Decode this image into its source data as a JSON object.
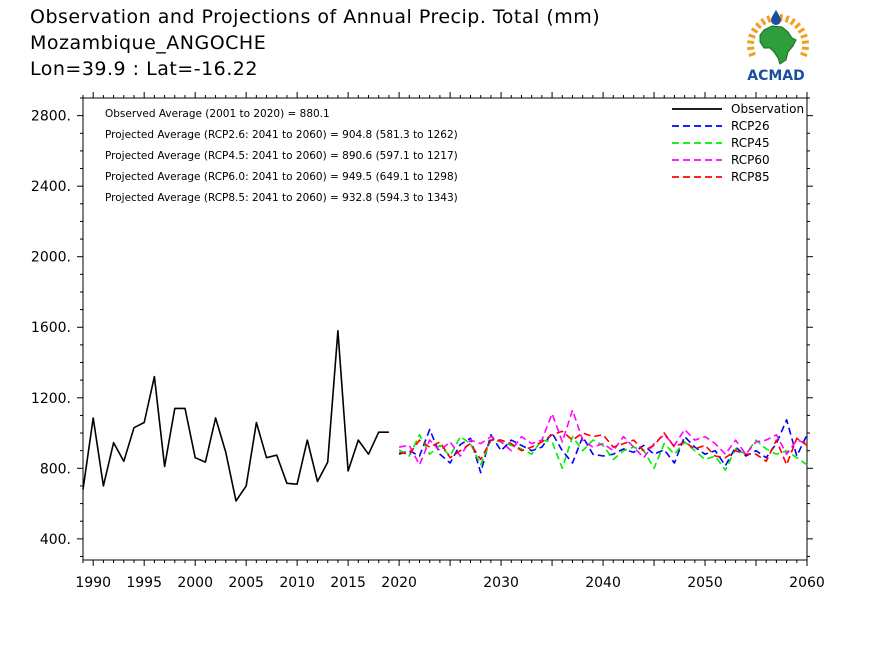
{
  "header": {
    "title_line1": "Observation and Projections of Annual Precip. Total (mm)",
    "title_line2": "Mozambique_ANGOCHE",
    "title_line3": "Lon=39.9 : Lat=-16.22"
  },
  "logo": {
    "text": "ACMAD",
    "icon": "africa-map-sun-logo"
  },
  "colors": {
    "observation": "#000000",
    "rcp26": "#0000ff",
    "rcp45": "#00ee00",
    "rcp60": "#ff00ff",
    "rcp85": "#ff0000",
    "logo_blue": "#1a4fa0",
    "logo_green": "#2e9e3a",
    "logo_orange": "#f0a020"
  },
  "chart_data": {
    "type": "line",
    "title": "Observation and Projections of Annual Precip. Total (mm)",
    "xlim": [
      1989,
      2060
    ],
    "ylim": [
      280,
      2900
    ],
    "y_ticks": [
      {
        "value": 400,
        "label": "400."
      },
      {
        "value": 800,
        "label": "800."
      },
      {
        "value": 1200,
        "label": "1200."
      },
      {
        "value": 1600,
        "label": "1600."
      },
      {
        "value": 2000,
        "label": "2000."
      },
      {
        "value": 2400,
        "label": "2400."
      },
      {
        "value": 2800,
        "label": "2800."
      }
    ],
    "x_ticks": [
      {
        "value": 1990,
        "label": "1990"
      },
      {
        "value": 1995,
        "label": "1995"
      },
      {
        "value": 2000,
        "label": "2000"
      },
      {
        "value": 2005,
        "label": "2005"
      },
      {
        "value": 2010,
        "label": "2010"
      },
      {
        "value": 2015,
        "label": "2015"
      },
      {
        "value": 2020,
        "label": "2020"
      },
      {
        "value": 2030,
        "label": "2030"
      },
      {
        "value": 2040,
        "label": "2040"
      },
      {
        "value": 2050,
        "label": "2050"
      },
      {
        "value": 2060,
        "label": "2060"
      }
    ],
    "legend_position": "top-right",
    "annotations": [
      "Observed Average (2001 to 2020) = 880.1",
      "Projected Average (RCP2.6: 2041 to 2060) = 904.8 (581.3 to 1262)",
      "Projected Average (RCP4.5: 2041 to 2060) = 890.6 (597.1 to 1217)",
      "Projected Average (RCP6.0: 2041 to 2060) = 949.5 (649.1 to 1298)",
      "Projected Average (RCP8.5: 2041 to 2060) = 932.8 (594.3 to 1343)"
    ],
    "series": [
      {
        "name": "Observation",
        "key": "observation",
        "x": [
          1989,
          1990,
          1991,
          1992,
          1993,
          1994,
          1995,
          1996,
          1997,
          1998,
          1999,
          2000,
          2001,
          2002,
          2003,
          2004,
          2005,
          2006,
          2007,
          2008,
          2009,
          2010,
          2011,
          2012,
          2013,
          2014,
          2015,
          2016,
          2017,
          2018,
          2019
        ],
        "values": [
          680,
          1085,
          700,
          945,
          840,
          1030,
          1060,
          1320,
          810,
          1140,
          1140,
          860,
          835,
          1085,
          890,
          615,
          700,
          1060,
          860,
          875,
          715,
          710,
          960,
          725,
          835,
          1580,
          785,
          960,
          880,
          1005,
          1005
        ]
      },
      {
        "name": "RCP26",
        "key": "rcp26",
        "x": [
          2020,
          2021,
          2022,
          2023,
          2024,
          2025,
          2026,
          2027,
          2028,
          2029,
          2030,
          2031,
          2032,
          2033,
          2034,
          2035,
          2036,
          2037,
          2038,
          2039,
          2040,
          2041,
          2042,
          2043,
          2044,
          2045,
          2046,
          2047,
          2048,
          2049,
          2050,
          2051,
          2052,
          2053,
          2054,
          2055,
          2056,
          2057,
          2058,
          2059,
          2060
        ],
        "values": [
          880,
          900,
          870,
          1020,
          880,
          830,
          935,
          970,
          775,
          990,
          900,
          960,
          930,
          900,
          920,
          1000,
          900,
          830,
          980,
          880,
          870,
          880,
          910,
          890,
          930,
          880,
          905,
          830,
          980,
          920,
          880,
          900,
          815,
          920,
          870,
          900,
          860,
          940,
          1075,
          870,
          990
        ]
      },
      {
        "name": "RCP45",
        "key": "rcp45",
        "x": [
          2020,
          2021,
          2022,
          2023,
          2024,
          2025,
          2026,
          2027,
          2028,
          2029,
          2030,
          2031,
          2032,
          2033,
          2034,
          2035,
          2036,
          2037,
          2038,
          2039,
          2040,
          2041,
          2042,
          2043,
          2044,
          2045,
          2046,
          2047,
          2048,
          2049,
          2050,
          2051,
          2052,
          2053,
          2054,
          2055,
          2056,
          2057,
          2058,
          2059,
          2060
        ],
        "values": [
          905,
          870,
          990,
          880,
          930,
          870,
          980,
          940,
          820,
          960,
          950,
          930,
          910,
          880,
          960,
          950,
          800,
          980,
          900,
          960,
          930,
          850,
          900,
          920,
          900,
          800,
          940,
          880,
          950,
          900,
          850,
          870,
          790,
          910,
          880,
          960,
          910,
          880,
          900,
          860,
          820
        ]
      },
      {
        "name": "RCP60",
        "key": "rcp60",
        "x": [
          2020,
          2021,
          2022,
          2023,
          2024,
          2025,
          2026,
          2027,
          2028,
          2029,
          2030,
          2031,
          2032,
          2033,
          2034,
          2035,
          2036,
          2037,
          2038,
          2039,
          2040,
          2041,
          2042,
          2043,
          2044,
          2045,
          2046,
          2047,
          2048,
          2049,
          2050,
          2051,
          2052,
          2053,
          2054,
          2055,
          2056,
          2057,
          2058,
          2059,
          2060
        ],
        "values": [
          920,
          930,
          820,
          960,
          900,
          950,
          870,
          960,
          940,
          980,
          950,
          900,
          980,
          940,
          960,
          1110,
          950,
          1130,
          960,
          920,
          940,
          900,
          980,
          920,
          860,
          940,
          990,
          930,
          1020,
          960,
          980,
          940,
          880,
          960,
          880,
          950,
          960,
          990,
          880,
          960,
          940
        ]
      },
      {
        "name": "RCP85",
        "key": "rcp85",
        "x": [
          2020,
          2021,
          2022,
          2023,
          2024,
          2025,
          2026,
          2027,
          2028,
          2029,
          2030,
          2031,
          2032,
          2033,
          2034,
          2035,
          2036,
          2037,
          2038,
          2039,
          2040,
          2041,
          2042,
          2043,
          2044,
          2045,
          2046,
          2047,
          2048,
          2049,
          2050,
          2051,
          2052,
          2053,
          2054,
          2055,
          2056,
          2057,
          2058,
          2059,
          2060
        ],
        "values": [
          890,
          880,
          960,
          920,
          950,
          860,
          900,
          940,
          850,
          960,
          960,
          940,
          900,
          920,
          950,
          990,
          1010,
          960,
          1000,
          980,
          990,
          920,
          940,
          960,
          900,
          930,
          1000,
          920,
          950,
          910,
          930,
          870,
          860,
          900,
          880,
          880,
          840,
          960,
          820,
          970,
          930
        ]
      }
    ]
  }
}
